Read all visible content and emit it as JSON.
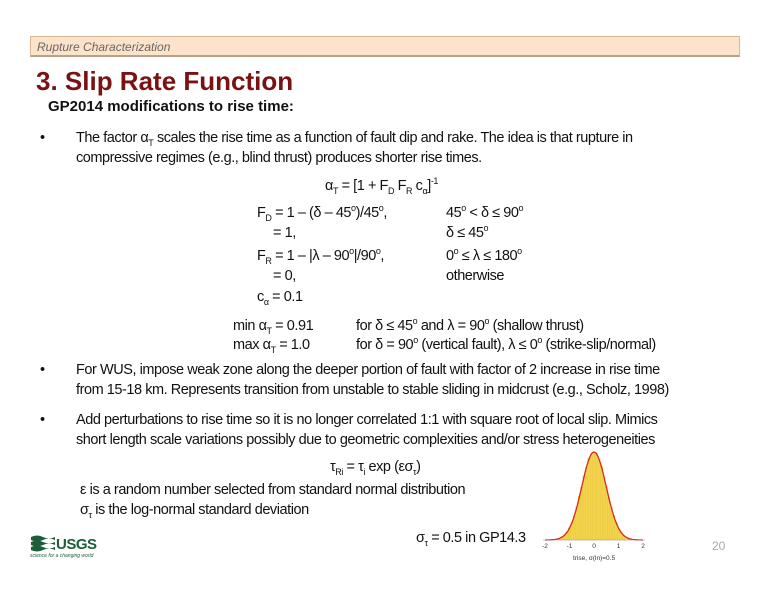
{
  "header": {
    "section": "Rupture Characterization"
  },
  "title": "3. Slip Rate Function",
  "subtitle": "GP2014 modifications to rise time:",
  "bullets": [
    {
      "lines": [
        [
          {
            "t": "The factor α"
          },
          {
            "t": "T",
            "sub": true
          },
          {
            "t": " scales the rise time as a function of fault dip and rake. The idea is that rupture in"
          }
        ],
        [
          {
            "t": "compressive regimes (e.g., blind thrust) produces shorter rise times."
          }
        ]
      ]
    },
    {
      "lines": [
        [
          {
            "t": "For WUS, impose weak zone along the deeper portion of fault with factor of 2 increase in rise time"
          }
        ],
        [
          {
            "t": "from 15-18 km. Represents transition from unstable to stable sliding in midcrust (e.g., Scholz, 1998)"
          }
        ]
      ]
    },
    {
      "lines": [
        [
          {
            "t": "Add perturbations to rise time so it is no longer correlated 1:1 with square root of local slip. Mimics"
          }
        ],
        [
          {
            "t": "short length scale variations possibly due to geometric complexities and/or stress heterogeneities"
          }
        ]
      ]
    }
  ],
  "bullet_symbol": "•",
  "equations": {
    "alpha": [
      {
        "t": "α"
      },
      {
        "t": "T",
        "sub": true
      },
      {
        "t": " = [1 + F"
      },
      {
        "t": "D",
        "sub": true
      },
      {
        "t": " F"
      },
      {
        "t": "R",
        "sub": true
      },
      {
        "t": " c"
      },
      {
        "t": "α",
        "sub": true
      },
      {
        "t": "]"
      },
      {
        "t": "-1",
        "sup": true
      }
    ],
    "fd1": [
      {
        "t": "F"
      },
      {
        "t": "D",
        "sub": true
      },
      {
        "t": " = 1 – (δ – 45"
      },
      {
        "t": "o",
        "sup": true
      },
      {
        "t": ")/45"
      },
      {
        "t": "o",
        "sup": true
      },
      {
        "t": ","
      }
    ],
    "fd1_cond": [
      {
        "t": "45"
      },
      {
        "t": "o",
        "sup": true
      },
      {
        "t": " < δ ≤ 90"
      },
      {
        "t": "o",
        "sup": true
      }
    ],
    "fd2": [
      {
        "t": "= 1,"
      }
    ],
    "fd2_cond": [
      {
        "t": "δ ≤ 45"
      },
      {
        "t": "o",
        "sup": true
      }
    ],
    "fr1": [
      {
        "t": "F"
      },
      {
        "t": "R",
        "sub": true
      },
      {
        "t": " = 1 – |λ – 90"
      },
      {
        "t": "o",
        "sup": true
      },
      {
        "t": "|/90"
      },
      {
        "t": "o",
        "sup": true
      },
      {
        "t": ","
      }
    ],
    "fr1_cond": [
      {
        "t": "0"
      },
      {
        "t": "o",
        "sup": true
      },
      {
        "t": " ≤ λ ≤ 180"
      },
      {
        "t": "o",
        "sup": true
      }
    ],
    "fr2": [
      {
        "t": "= 0,"
      }
    ],
    "fr2_cond": [
      {
        "t": "otherwise"
      }
    ],
    "calpha": [
      {
        "t": "c"
      },
      {
        "t": "α",
        "sub": true
      },
      {
        "t": " = 0.1"
      }
    ],
    "min": [
      {
        "t": "min α"
      },
      {
        "t": "T",
        "sub": true
      },
      {
        "t": " = 0.91"
      }
    ],
    "min_cond": [
      {
        "t": "for δ ≤ 45"
      },
      {
        "t": "o",
        "sup": true
      },
      {
        "t": " and λ = 90"
      },
      {
        "t": "o",
        "sup": true
      },
      {
        "t": " (shallow thrust)"
      }
    ],
    "max": [
      {
        "t": "max α"
      },
      {
        "t": "T",
        "sub": true
      },
      {
        "t": " = 1.0"
      }
    ],
    "max_cond": [
      {
        "t": "for δ = 90"
      },
      {
        "t": "o",
        "sup": true
      },
      {
        "t": " (vertical fault), λ ≤ 0"
      },
      {
        "t": "o",
        "sup": true
      },
      {
        "t": " (strike-slip/normal)"
      }
    ],
    "tau": [
      {
        "t": "τ"
      },
      {
        "t": "Ri",
        "sub": true
      },
      {
        "t": " = τ"
      },
      {
        "t": "i",
        "sub": true
      },
      {
        "t": " exp (εσ"
      },
      {
        "t": "τ",
        "sub": true
      },
      {
        "t": ")"
      }
    ],
    "eps": [
      {
        "t": "ε is a random number selected from standard normal distribution"
      }
    ],
    "sigma": [
      {
        "t": "σ"
      },
      {
        "t": "τ",
        "sub": true
      },
      {
        "t": " is the log-normal standard deviation"
      }
    ],
    "sigma_val": [
      {
        "t": "σ"
      },
      {
        "t": "τ",
        "sub": true
      },
      {
        "t": " = 0.5 in GP14.3"
      }
    ]
  },
  "chart_data": {
    "type": "bar",
    "xlabel": "trise, σ(ln)=0.5",
    "xlim": [
      -2,
      2
    ],
    "xticks": [
      "-2",
      "-1",
      "0",
      "1",
      "2"
    ],
    "bin_width": 0.1,
    "x": [
      -1.5,
      -1.4,
      -1.3,
      -1.2,
      -1.1,
      -1.0,
      -0.9,
      -0.8,
      -0.7,
      -0.6,
      -0.5,
      -0.4,
      -0.3,
      -0.2,
      -0.1,
      0.0,
      0.1,
      0.2,
      0.3,
      0.4,
      0.5,
      0.6,
      0.7,
      0.8,
      0.9,
      1.0,
      1.1,
      1.2,
      1.3,
      1.4,
      1.5
    ],
    "values": [
      0.01,
      0.02,
      0.04,
      0.06,
      0.09,
      0.14,
      0.2,
      0.27,
      0.38,
      0.5,
      0.6,
      0.73,
      0.83,
      0.93,
      0.97,
      1.0,
      0.98,
      0.91,
      0.84,
      0.72,
      0.61,
      0.48,
      0.37,
      0.28,
      0.2,
      0.13,
      0.09,
      0.05,
      0.03,
      0.02,
      0.01
    ],
    "curve": "normal, sigma 0.5",
    "bar_color": "#f2d34a",
    "curve_color": "#d42a1e"
  },
  "logo": {
    "text": "USGS",
    "tagline": "science for a changing world"
  },
  "page_number": "20"
}
